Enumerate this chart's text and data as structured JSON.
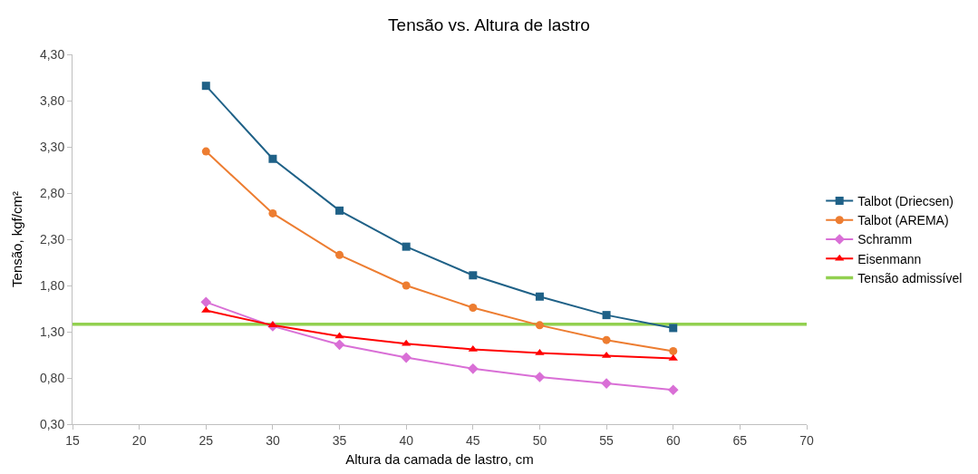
{
  "chart_data": {
    "type": "line",
    "title": "Tensão vs. Altura de lastro",
    "xlabel": "Altura da camada de lastro, cm",
    "ylabel": "Tensão, kgf/cm²",
    "x": [
      25,
      30,
      35,
      40,
      45,
      50,
      55,
      60
    ],
    "series": [
      {
        "name": "Talbot (Driecsen)",
        "color": "#1f6187",
        "marker": "square",
        "values": [
          3.96,
          3.17,
          2.61,
          2.22,
          1.91,
          1.68,
          1.48,
          1.34
        ]
      },
      {
        "name": "Talbot (AREMA)",
        "color": "#ed7d31",
        "marker": "circle",
        "values": [
          3.25,
          2.58,
          2.13,
          1.8,
          1.56,
          1.37,
          1.21,
          1.09
        ]
      },
      {
        "name": "Schramm",
        "color": "#d96fd6",
        "marker": "diamond",
        "values": [
          1.62,
          1.36,
          1.16,
          1.02,
          0.9,
          0.81,
          0.74,
          0.67
        ]
      },
      {
        "name": "Eisenmann",
        "color": "#ff0000",
        "marker": "triangle",
        "values": [
          1.53,
          1.37,
          1.25,
          1.17,
          1.11,
          1.07,
          1.04,
          1.01
        ]
      },
      {
        "name": "Tensão admissível",
        "color": "#92d050",
        "marker": "none",
        "x": [
          15,
          70
        ],
        "values": [
          1.38,
          1.38
        ]
      }
    ],
    "xlim": [
      15,
      70
    ],
    "xticks": [
      15,
      20,
      25,
      30,
      35,
      40,
      45,
      50,
      55,
      60,
      65,
      70
    ],
    "ylim": [
      0.3,
      4.3
    ],
    "yticks": [
      {
        "value": 0.3,
        "label": "0,30"
      },
      {
        "value": 0.8,
        "label": "0,80"
      },
      {
        "value": 1.3,
        "label": "1,30"
      },
      {
        "value": 1.8,
        "label": "1,80"
      },
      {
        "value": 2.3,
        "label": "2,30"
      },
      {
        "value": 2.8,
        "label": "2,80"
      },
      {
        "value": 3.3,
        "label": "3,30"
      },
      {
        "value": 3.8,
        "label": "3,80"
      },
      {
        "value": 4.3,
        "label": "4,30"
      }
    ],
    "legend": "right"
  }
}
